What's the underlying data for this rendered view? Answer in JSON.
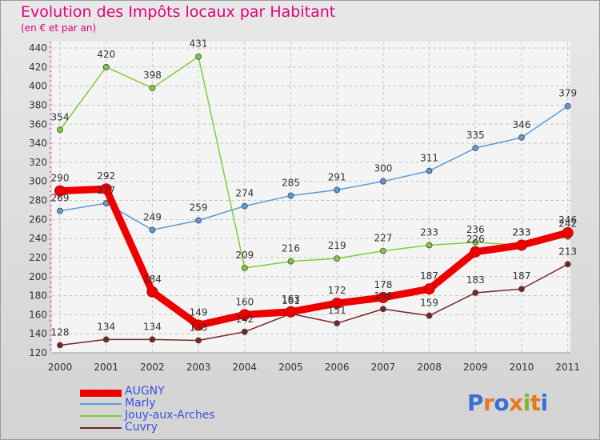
{
  "header": {
    "title": "Evolution des Impôts locaux par Habitant",
    "subtitle": "(en € et par an)"
  },
  "logo": {
    "letters": [
      "P",
      "r",
      "o",
      "x",
      "i",
      "t",
      "i"
    ],
    "colors": [
      "#3a6fd8",
      "#e8781e",
      "#3a6fd8",
      "#e8781e",
      "#7ab82e",
      "#e8781e",
      "#3a6fd8"
    ]
  },
  "chart_data": {
    "type": "line",
    "title": "Evolution des Impôts locaux par Habitant",
    "subtitle": "(en € et par an)",
    "xlabel": "",
    "ylabel": "",
    "categories": [
      "2000",
      "2001",
      "2002",
      "2003",
      "2004",
      "2005",
      "2006",
      "2007",
      "2008",
      "2009",
      "2010",
      "2011"
    ],
    "ylim": [
      120,
      440
    ],
    "yticks": [
      120,
      140,
      160,
      180,
      200,
      220,
      240,
      260,
      280,
      300,
      320,
      340,
      360,
      380,
      400,
      420,
      440
    ],
    "grid": true,
    "legend_position": "bottom-left",
    "series": [
      {
        "name": "AUGNY",
        "color": "#ee0000",
        "emphasis": true,
        "values": [
          290,
          292,
          184,
          149,
          160,
          163,
          172,
          178,
          187,
          226,
          233,
          246
        ]
      },
      {
        "name": "Marly",
        "color": "#5b9bd5",
        "emphasis": false,
        "values": [
          269,
          277,
          249,
          259,
          274,
          285,
          291,
          300,
          311,
          335,
          346,
          379
        ]
      },
      {
        "name": "Jouy-aux-Arches",
        "color": "#7fcc3a",
        "emphasis": false,
        "values": [
          354,
          420,
          398,
          431,
          209,
          216,
          219,
          227,
          233,
          236,
          233,
          242
        ]
      },
      {
        "name": "Cuvry",
        "color": "#7a2424",
        "emphasis": false,
        "values": [
          128,
          134,
          134,
          133,
          142,
          161,
          151,
          166,
          159,
          183,
          187,
          213
        ]
      }
    ]
  }
}
